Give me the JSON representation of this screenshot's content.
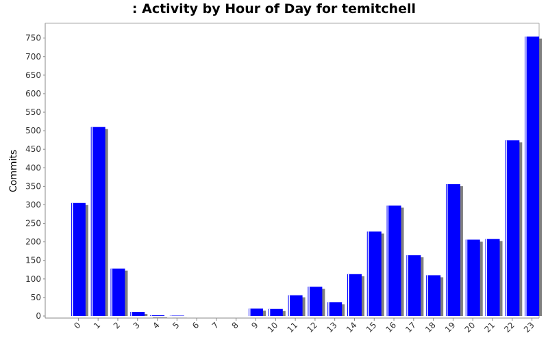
{
  "chart_data": {
    "type": "bar",
    "title": ": Activity by Hour of Day for temitchell",
    "xlabel": "",
    "ylabel": "Commits",
    "categories": [
      "0",
      "1",
      "2",
      "3",
      "4",
      "5",
      "6",
      "7",
      "8",
      "9",
      "10",
      "11",
      "12",
      "13",
      "14",
      "15",
      "16",
      "17",
      "18",
      "19",
      "20",
      "21",
      "22",
      "23"
    ],
    "values": [
      305,
      510,
      128,
      11,
      2,
      1,
      0,
      0,
      0,
      20,
      19,
      56,
      79,
      37,
      113,
      228,
      298,
      164,
      110,
      356,
      206,
      208,
      474,
      754
    ],
    "ylim": [
      0,
      750
    ],
    "yticks": [
      0,
      50,
      100,
      150,
      200,
      250,
      300,
      350,
      400,
      450,
      500,
      550,
      600,
      650,
      700,
      750
    ],
    "grid": false,
    "colors": {
      "bar": "#0000ff",
      "shadow": "#808080",
      "highlight": "#ffffff"
    }
  }
}
